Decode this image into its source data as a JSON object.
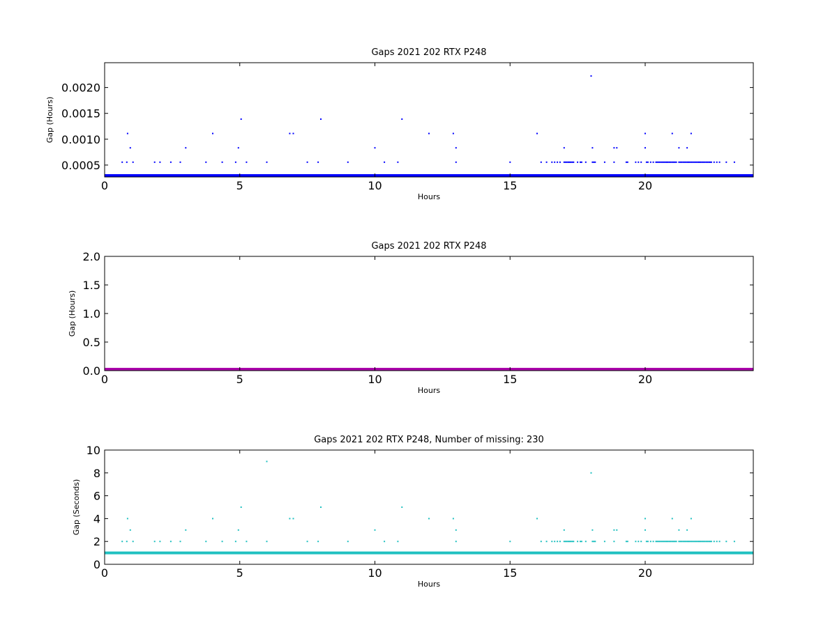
{
  "chart_data": [
    {
      "type": "scatter",
      "title": "Gaps 2021 202 RTX  P248",
      "xlabel": "Hours",
      "ylabel": "Gap (Hours)",
      "xlim": [
        0,
        24
      ],
      "ylim": [
        0.00027,
        0.00248
      ],
      "xticks": [
        0,
        5,
        10,
        15,
        20
      ],
      "xtick_labels": [
        "0",
        "5",
        "10",
        "15",
        "20"
      ],
      "yticks": [
        0.0005,
        0.001,
        0.0015,
        0.002
      ],
      "ytick_labels": [
        "0.0005",
        "0.0010",
        "0.0015",
        "0.0020"
      ],
      "grid": false,
      "color": "#0000ff",
      "baseline": {
        "y": 0.000278,
        "x": [
          0,
          24
        ]
      },
      "series": [
        {
          "x": [
            0.65,
            0.82,
            1.05,
            1.85,
            2.05,
            2.45,
            2.8,
            3.75,
            4.35,
            4.85,
            5.25,
            6.0,
            7.5,
            7.9,
            9.0,
            10.35,
            10.85,
            13.0,
            15.0,
            16.15,
            16.35,
            16.55,
            16.65,
            16.75,
            16.85,
            17.0,
            17.05,
            17.1,
            17.15,
            17.2,
            17.25,
            17.3,
            17.35,
            17.5,
            17.6,
            17.65,
            17.8,
            18.05,
            18.1,
            18.15,
            18.5,
            18.85,
            19.3,
            19.35,
            19.65,
            19.75,
            19.85,
            20.05,
            20.1,
            20.2,
            20.3,
            20.4,
            20.45,
            20.5,
            20.55,
            20.6,
            20.65,
            20.7,
            20.75,
            20.8,
            20.85,
            20.9,
            20.95,
            21.0,
            21.05,
            21.1,
            21.15,
            21.25,
            21.3,
            21.35,
            21.4,
            21.45,
            21.5,
            21.55,
            21.6,
            21.65,
            21.7,
            21.75,
            21.8,
            21.85,
            21.9,
            21.95,
            22.0,
            22.05,
            22.1,
            22.15,
            22.2,
            22.25,
            22.3,
            22.35,
            22.4,
            22.45,
            22.55,
            22.65,
            22.75,
            23.0,
            23.3,
            0.95,
            3.0,
            4.95,
            10.0,
            13.0,
            17.0,
            18.05,
            18.85,
            18.95,
            20.0,
            21.25,
            21.55,
            0.85,
            4.0,
            6.85,
            6.98,
            12.0,
            12.9,
            16.0,
            20.0,
            21.0,
            21.7,
            5.05,
            8.0,
            11.0,
            18.0
          ],
          "y": [
            0.000556,
            0.000556,
            0.000556,
            0.000556,
            0.000556,
            0.000556,
            0.000556,
            0.000556,
            0.000556,
            0.000556,
            0.000556,
            0.000556,
            0.000556,
            0.000556,
            0.000556,
            0.000556,
            0.000556,
            0.000556,
            0.000556,
            0.000556,
            0.000556,
            0.000556,
            0.000556,
            0.000556,
            0.000556,
            0.000556,
            0.000556,
            0.000556,
            0.000556,
            0.000556,
            0.000556,
            0.000556,
            0.000556,
            0.000556,
            0.000556,
            0.000556,
            0.000556,
            0.000556,
            0.000556,
            0.000556,
            0.000556,
            0.000556,
            0.000556,
            0.000556,
            0.000556,
            0.000556,
            0.000556,
            0.000556,
            0.000556,
            0.000556,
            0.000556,
            0.000556,
            0.000556,
            0.000556,
            0.000556,
            0.000556,
            0.000556,
            0.000556,
            0.000556,
            0.000556,
            0.000556,
            0.000556,
            0.000556,
            0.000556,
            0.000556,
            0.000556,
            0.000556,
            0.000556,
            0.000556,
            0.000556,
            0.000556,
            0.000556,
            0.000556,
            0.000556,
            0.000556,
            0.000556,
            0.000556,
            0.000556,
            0.000556,
            0.000556,
            0.000556,
            0.000556,
            0.000556,
            0.000556,
            0.000556,
            0.000556,
            0.000556,
            0.000556,
            0.000556,
            0.000556,
            0.000556,
            0.000556,
            0.000556,
            0.000556,
            0.000556,
            0.000556,
            0.000556,
            0.000833,
            0.000833,
            0.000833,
            0.000833,
            0.000833,
            0.000833,
            0.000833,
            0.000833,
            0.000833,
            0.000833,
            0.000833,
            0.000833,
            0.001111,
            0.001111,
            0.001111,
            0.001111,
            0.001111,
            0.001111,
            0.001111,
            0.001111,
            0.001111,
            0.001111,
            0.001389,
            0.001389,
            0.001389,
            0.002222
          ]
        }
      ]
    },
    {
      "type": "scatter",
      "title": "Gaps 2021 202 RTX  P248",
      "xlabel": "Hours",
      "ylabel": "Gap (Hours)",
      "xlim": [
        0,
        24
      ],
      "ylim": [
        0,
        2
      ],
      "xticks": [
        0,
        5,
        10,
        15,
        20
      ],
      "xtick_labels": [
        "0",
        "5",
        "10",
        "15",
        "20"
      ],
      "yticks": [
        0,
        0.5,
        1,
        1.5,
        2
      ],
      "ytick_labels": [
        "0.0",
        "0.5",
        "1.0",
        "1.5",
        "2.0"
      ],
      "grid": false,
      "color": "#aa00aa",
      "baseline": {
        "y": 0.0003,
        "x": [
          0,
          24
        ]
      },
      "series": []
    },
    {
      "type": "scatter",
      "title": "Gaps 2021 202 RTX  P248, Number of missing: 230",
      "xlabel": "Hours",
      "ylabel": "Gap (Seconds)",
      "xlim": [
        0,
        24
      ],
      "ylim": [
        0,
        10
      ],
      "xticks": [
        0,
        5,
        10,
        15,
        20
      ],
      "xtick_labels": [
        "0",
        "5",
        "10",
        "15",
        "20"
      ],
      "yticks": [
        0,
        2,
        4,
        6,
        8,
        10
      ],
      "ytick_labels": [
        "0",
        "2",
        "4",
        "6",
        "8",
        "10"
      ],
      "grid": false,
      "color": "#20c0c0",
      "baseline": {
        "y": 1,
        "x": [
          0,
          24
        ]
      },
      "series": [
        {
          "x": [
            0.65,
            0.82,
            1.05,
            1.85,
            2.05,
            2.45,
            2.8,
            3.75,
            4.35,
            4.85,
            5.25,
            6.0,
            7.5,
            7.9,
            9.0,
            10.35,
            10.85,
            13.0,
            15.0,
            16.15,
            16.35,
            16.55,
            16.65,
            16.75,
            16.85,
            17.0,
            17.05,
            17.1,
            17.15,
            17.2,
            17.25,
            17.3,
            17.35,
            17.5,
            17.6,
            17.65,
            17.8,
            18.05,
            18.1,
            18.15,
            18.5,
            18.85,
            19.3,
            19.35,
            19.65,
            19.75,
            19.85,
            20.05,
            20.1,
            20.2,
            20.3,
            20.4,
            20.45,
            20.5,
            20.55,
            20.6,
            20.65,
            20.7,
            20.75,
            20.8,
            20.85,
            20.9,
            20.95,
            21.0,
            21.05,
            21.1,
            21.15,
            21.25,
            21.3,
            21.35,
            21.4,
            21.45,
            21.5,
            21.55,
            21.6,
            21.65,
            21.7,
            21.75,
            21.8,
            21.85,
            21.9,
            21.95,
            22.0,
            22.05,
            22.1,
            22.15,
            22.2,
            22.25,
            22.3,
            22.35,
            22.4,
            22.45,
            22.55,
            22.65,
            22.75,
            23.0,
            23.3,
            0.95,
            3.0,
            4.95,
            10.0,
            13.0,
            17.0,
            18.05,
            18.85,
            18.95,
            20.0,
            21.25,
            21.55,
            0.85,
            4.0,
            6.85,
            6.98,
            12.0,
            12.9,
            16.0,
            20.0,
            21.0,
            21.7,
            5.05,
            8.0,
            11.0,
            18.0,
            6.0
          ],
          "y": [
            2,
            2,
            2,
            2,
            2,
            2,
            2,
            2,
            2,
            2,
            2,
            2,
            2,
            2,
            2,
            2,
            2,
            2,
            2,
            2,
            2,
            2,
            2,
            2,
            2,
            2,
            2,
            2,
            2,
            2,
            2,
            2,
            2,
            2,
            2,
            2,
            2,
            2,
            2,
            2,
            2,
            2,
            2,
            2,
            2,
            2,
            2,
            2,
            2,
            2,
            2,
            2,
            2,
            2,
            2,
            2,
            2,
            2,
            2,
            2,
            2,
            2,
            2,
            2,
            2,
            2,
            2,
            2,
            2,
            2,
            2,
            2,
            2,
            2,
            2,
            2,
            2,
            2,
            2,
            2,
            2,
            2,
            2,
            2,
            2,
            2,
            2,
            2,
            2,
            2,
            2,
            2,
            2,
            2,
            2,
            2,
            2,
            3,
            3,
            3,
            3,
            3,
            3,
            3,
            3,
            3,
            3,
            3,
            3,
            4,
            4,
            4,
            4,
            4,
            4,
            4,
            4,
            4,
            4,
            5,
            5,
            5,
            8,
            9
          ]
        }
      ]
    }
  ]
}
